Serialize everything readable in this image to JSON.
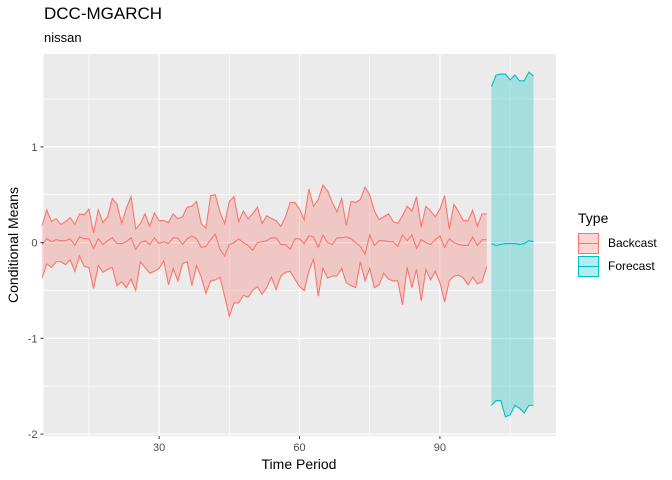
{
  "chart_data": {
    "type": "area",
    "title": "DCC-MGARCH",
    "subtitle": "nissan",
    "xlabel": "Time Period",
    "ylabel": "Conditional Means",
    "xlim": [
      5.3,
      114.8
    ],
    "ylim": [
      -2.02,
      1.97
    ],
    "x_ticks": [
      30,
      60,
      90
    ],
    "x_tick_labels": [
      "30",
      "60",
      "90"
    ],
    "y_ticks": [
      -2,
      -1,
      0,
      1
    ],
    "y_tick_labels": [
      "-2",
      "-1",
      "0",
      "1"
    ],
    "grid": true,
    "legend": {
      "title": "Type",
      "placement": "right",
      "entries": [
        "Backcast",
        "Forecast"
      ]
    },
    "series": [
      {
        "name": "Backcast",
        "color": "#F8766D",
        "x_start": 5,
        "mean": [
          -0.02,
          0.04,
          0.01,
          0.03,
          0.02,
          0.02,
          0.04,
          -0.03,
          0.06,
          0.04,
          0.04,
          -0.06,
          0.04,
          -0.02,
          0.02,
          0.05,
          -0.01,
          -0.01,
          0.01,
          0.05,
          -0.07,
          0.0,
          0.02,
          -0.02,
          0.05,
          -0.01,
          0.01,
          -0.01,
          0.05,
          0.05,
          -0.02,
          0.04,
          0.07,
          0.04,
          -0.05,
          -0.04,
          0.03,
          0.09,
          -0.07,
          -0.14,
          -0.02,
          0.0,
          0.04,
          0.0,
          -0.03,
          -0.08,
          0.0,
          0.01,
          0.02,
          0.05,
          0.05,
          -0.02,
          -0.02,
          -0.07,
          0.04,
          0.04,
          -0.01,
          0.07,
          0.06,
          -0.05,
          0.08,
          0.0,
          -0.02,
          0.05,
          0.05,
          0.06,
          0.04,
          0.0,
          -0.04,
          -0.12,
          0.08,
          -0.03,
          0.02,
          0.02,
          0.01,
          0.01,
          -0.04,
          0.08,
          0.02,
          0.08,
          -0.06,
          0.03,
          0.0,
          -0.02,
          0.03,
          0.07,
          -0.05,
          0.04,
          0.0,
          -0.02,
          -0.03,
          -0.03,
          0.06,
          -0.03,
          0.03,
          0.03
        ],
        "upper": [
          0.18,
          0.34,
          0.22,
          0.25,
          0.19,
          0.22,
          0.26,
          0.19,
          0.3,
          0.29,
          0.35,
          0.1,
          0.34,
          0.21,
          0.27,
          0.46,
          0.4,
          0.2,
          0.36,
          0.48,
          0.14,
          0.2,
          0.3,
          0.17,
          0.31,
          0.23,
          0.23,
          0.21,
          0.3,
          0.25,
          0.27,
          0.37,
          0.38,
          0.43,
          0.2,
          0.15,
          0.49,
          0.5,
          0.32,
          0.2,
          0.43,
          0.48,
          0.22,
          0.33,
          0.25,
          0.3,
          0.37,
          0.2,
          0.28,
          0.25,
          0.23,
          0.17,
          0.27,
          0.42,
          0.42,
          0.35,
          0.24,
          0.56,
          0.38,
          0.45,
          0.6,
          0.54,
          0.42,
          0.32,
          0.46,
          0.18,
          0.43,
          0.42,
          0.45,
          0.58,
          0.5,
          0.33,
          0.24,
          0.27,
          0.3,
          0.22,
          0.2,
          0.28,
          0.38,
          0.33,
          0.48,
          0.16,
          0.38,
          0.33,
          0.27,
          0.35,
          0.49,
          0.14,
          0.4,
          0.32,
          0.23,
          0.23,
          0.34,
          0.17,
          0.3,
          0.3
        ],
        "lower": [
          -0.37,
          -0.22,
          -0.26,
          -0.2,
          -0.2,
          -0.23,
          -0.18,
          -0.3,
          -0.14,
          -0.25,
          -0.26,
          -0.48,
          -0.24,
          -0.31,
          -0.28,
          -0.26,
          -0.45,
          -0.41,
          -0.47,
          -0.38,
          -0.5,
          -0.2,
          -0.26,
          -0.32,
          -0.3,
          -0.27,
          -0.19,
          -0.44,
          -0.27,
          -0.4,
          -0.22,
          -0.2,
          -0.45,
          -0.24,
          -0.36,
          -0.53,
          -0.4,
          -0.39,
          -0.36,
          -0.56,
          -0.77,
          -0.63,
          -0.63,
          -0.55,
          -0.57,
          -0.5,
          -0.46,
          -0.54,
          -0.47,
          -0.36,
          -0.49,
          -0.35,
          -0.31,
          -0.3,
          -0.38,
          -0.46,
          -0.5,
          -0.3,
          -0.17,
          -0.56,
          -0.27,
          -0.37,
          -0.35,
          -0.35,
          -0.27,
          -0.42,
          -0.45,
          -0.47,
          -0.2,
          -0.4,
          -0.27,
          -0.47,
          -0.44,
          -0.32,
          -0.38,
          -0.4,
          -0.4,
          -0.65,
          -0.26,
          -0.47,
          -0.28,
          -0.61,
          -0.28,
          -0.39,
          -0.3,
          -0.42,
          -0.62,
          -0.4,
          -0.35,
          -0.34,
          -0.37,
          -0.44,
          -0.36,
          -0.43,
          -0.41,
          -0.25
        ]
      },
      {
        "name": "Forecast",
        "color": "#00BFC4",
        "x_start": 101,
        "mean": [
          -0.01,
          -0.03,
          -0.02,
          -0.01,
          -0.01,
          -0.01,
          -0.02,
          -0.01,
          0.02,
          0.01
        ],
        "upper": [
          1.63,
          1.75,
          1.76,
          1.76,
          1.7,
          1.75,
          1.69,
          1.69,
          1.78,
          1.74
        ],
        "lower": [
          -1.7,
          -1.65,
          -1.65,
          -1.82,
          -1.8,
          -1.7,
          -1.73,
          -1.78,
          -1.7,
          -1.7
        ]
      }
    ]
  }
}
